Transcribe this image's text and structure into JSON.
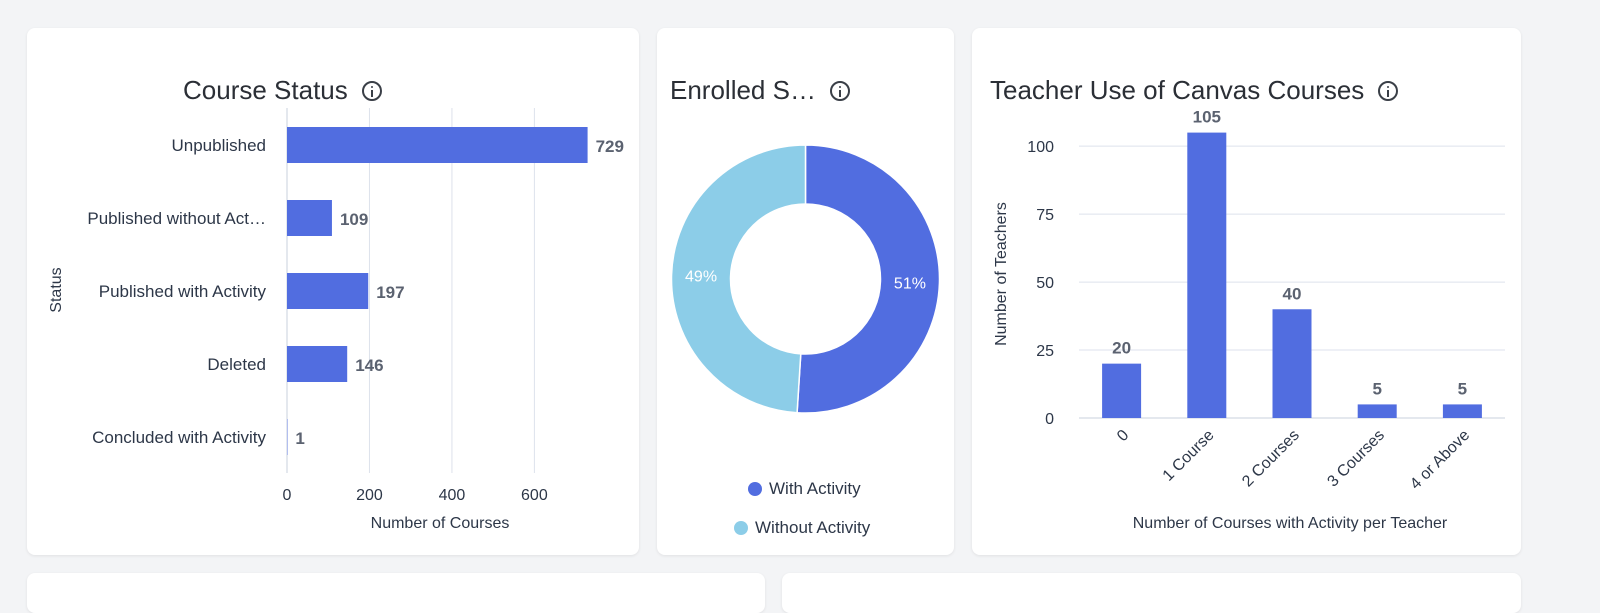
{
  "colors": {
    "primary": "#516de0",
    "secondary": "#8ccde8",
    "grid": "#dde2ec",
    "label": "#5b6270"
  },
  "cards": {
    "course_status": {
      "title": "Course Status",
      "info_icon": "info-icon"
    },
    "enrolled": {
      "title": "Enrolled S…",
      "info_icon": "info-icon"
    },
    "teacher_use": {
      "title": "Teacher Use of Canvas Courses",
      "info_icon": "info-icon"
    }
  },
  "chart_data": [
    {
      "type": "bar",
      "orientation": "horizontal",
      "title": "Course Status",
      "categories": [
        "Unpublished",
        "Published without Act…",
        "Published with Activity",
        "Deleted",
        "Concluded with Activity"
      ],
      "values": [
        729,
        109,
        197,
        146,
        1
      ],
      "data_labels": [
        "729",
        "109",
        "197",
        "146",
        "1"
      ],
      "xlabel": "Number of Courses",
      "ylabel": "Status",
      "xlim": [
        0,
        730
      ],
      "xticks": [
        0,
        200,
        400,
        600
      ],
      "xtick_labels": [
        "0",
        "200",
        "400",
        "600"
      ],
      "grid": true
    },
    {
      "type": "pie",
      "variant": "donut",
      "title": "Enrolled S…",
      "labels": [
        "With Activity",
        "Without Activity"
      ],
      "values": [
        51,
        49
      ],
      "data_labels": [
        "51%",
        "49%"
      ],
      "legend": "bottom"
    },
    {
      "type": "bar",
      "title": "Teacher Use of Canvas Courses",
      "categories": [
        "0",
        "1 Course",
        "2 Courses",
        "3 Courses",
        "4 or Above"
      ],
      "values": [
        20,
        105,
        40,
        5,
        5
      ],
      "data_labels": [
        "20",
        "105",
        "40",
        "5",
        "5"
      ],
      "xlabel": "Number of Courses with Activity per Teacher",
      "ylabel": "Number of Teachers",
      "ylim": [
        0,
        110
      ],
      "yticks": [
        0,
        25,
        50,
        75,
        100
      ],
      "ytick_labels": [
        "0",
        "25",
        "50",
        "75",
        "100"
      ],
      "grid": true
    }
  ]
}
